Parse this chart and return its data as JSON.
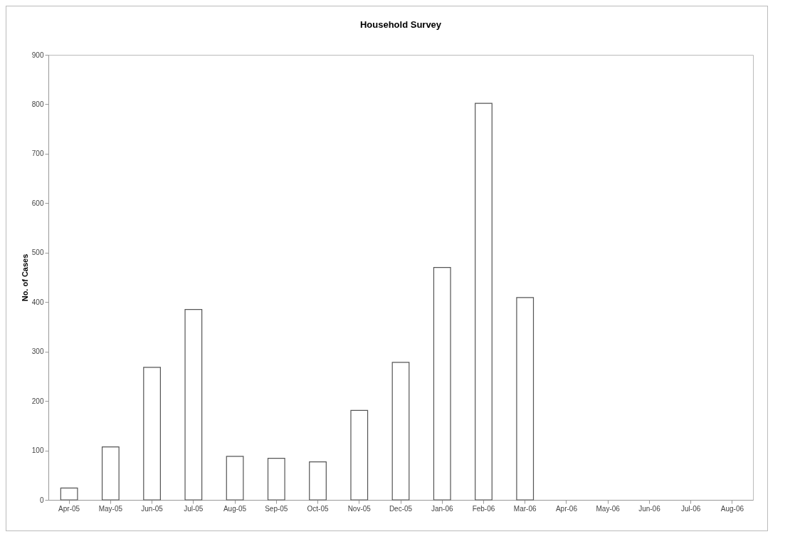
{
  "chart_data": {
    "type": "bar",
    "title": "Household Survey",
    "ylabel": "No. of Cases",
    "categories": [
      "Apr-05",
      "May-05",
      "Jun-05",
      "Jul-05",
      "Aug-05",
      "Sep-05",
      "Oct-05",
      "Nov-05",
      "Dec-05",
      "Jan-06",
      "Feb-06",
      "Mar-06",
      "Apr-06",
      "May-06",
      "Jun-06",
      "Jul-06",
      "Aug-06"
    ],
    "values": [
      24,
      107,
      268,
      385,
      88,
      84,
      77,
      181,
      278,
      470,
      802,
      409,
      null,
      null,
      null,
      null,
      null
    ],
    "color": "#ffffff",
    "ylim": [
      0,
      900
    ],
    "yticks": [
      0,
      100,
      200,
      300,
      400,
      500,
      600,
      700,
      800,
      900
    ],
    "grid": false
  }
}
